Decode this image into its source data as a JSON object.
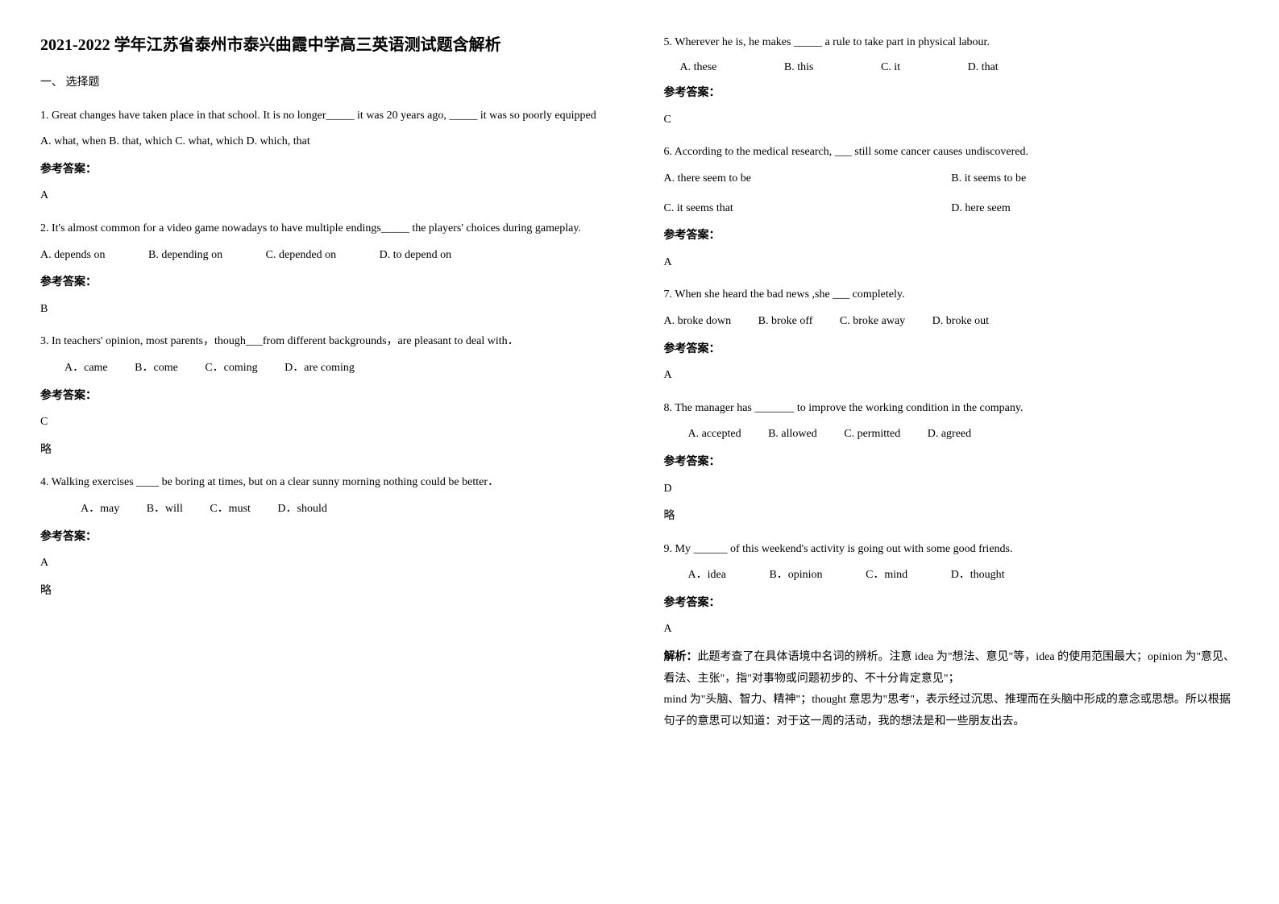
{
  "title": "2021-2022 学年江苏省泰州市泰兴曲霞中学高三英语测试题含解析",
  "section1_heading": "一、 选择题",
  "answer_label": "参考答案：",
  "abbr_text": "略",
  "q1": {
    "text": "1. Great changes have taken place in that school. It is no longer_____ it was 20 years ago, _____ it was so poorly equipped",
    "opts": "A. what, when  B. that, which  C. what, which  D. which, that",
    "answer": "A"
  },
  "q2": {
    "text": "2. It's almost common for a video game nowadays to have multiple endings_____ the players' choices during gameplay.",
    "optA": "A. depends on",
    "optB": "B. depending on",
    "optC": "C. depended on",
    "optD": "D. to depend on",
    "answer": "B"
  },
  "q3": {
    "text": "3. In teachers' opinion, most parents，though___from different backgrounds，are pleasant to deal with．",
    "optA": "A．came",
    "optB": "B．come",
    "optC": "C．coming",
    "optD": "D．are coming",
    "answer": "C"
  },
  "q4": {
    "text": "4. Walking exercises ____ be boring at times, but on a clear sunny morning nothing could be better．",
    "optA": "A．may",
    "optB": "B．will",
    "optC": "C．must",
    "optD": "D．should",
    "answer": "A"
  },
  "q5": {
    "text": "5. Wherever he is, he makes _____ a rule to take part in physical labour.",
    "optA": "A. these",
    "optB": "B. this",
    "optC": "C. it",
    "optD": "D. that",
    "answer": "C"
  },
  "q6": {
    "text": "6. According to the medical research, ___ still some cancer causes undiscovered.",
    "optA": "A. there seem to be",
    "optB": "B. it seems to be",
    "optC": "C. it seems that",
    "optD": "D. here seem",
    "answer": "A"
  },
  "q7": {
    "text": "7. When she heard the bad news ,she ___ completely.",
    "optA": "A. broke down",
    "optB": "B. broke off",
    "optC": "C. broke away",
    "optD": "D. broke out",
    "answer": "A"
  },
  "q8": {
    "text": "8. The manager has _______ to improve the working condition in the company.",
    "optA": "A. accepted",
    "optB": "B. allowed",
    "optC": "C. permitted",
    "optD": "D. agreed",
    "answer": "D"
  },
  "q9": {
    "text": "9. My ______ of this weekend's activity is going out with some good friends.",
    "optA": "A．idea",
    "optB": "B．opinion",
    "optC": "C．mind",
    "optD": "D．thought",
    "answer": "A",
    "explain_label": "解析：",
    "explain1": "此题考查了在具体语境中名词的辨析。注意 idea 为\"想法、意见\"等，idea 的使用范围最大；opinion 为\"意见、看法、主张\"，指\"对事物或问题初步的、不十分肯定意见\"；",
    "explain2": "mind 为\"头脑、智力、精神\"；thought 意思为\"思考\"，表示经过沉思、推理而在头脑中形成的意念或思想。所以根据句子的意思可以知道：对于这一周的活动，我的想法是和一些朋友出去。"
  }
}
